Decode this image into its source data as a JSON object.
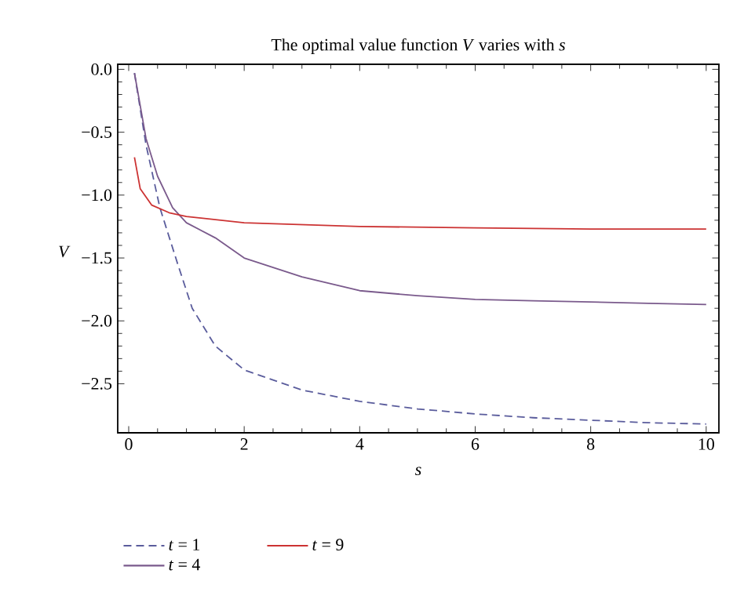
{
  "chart_data": {
    "type": "line",
    "title": "The optimal value function *V* varies with *s*",
    "xlabel": "*s*",
    "ylabel": "*V*",
    "xlim": [
      -0.19,
      10.22
    ],
    "ylim": [
      -2.89,
      0.04
    ],
    "xticks": [
      0,
      2,
      4,
      6,
      8,
      10
    ],
    "yticks": [
      {
        "value": 0,
        "label": "0.0"
      },
      {
        "value": -0.5,
        "label": "−0.5"
      },
      {
        "value": -1,
        "label": "−1.0"
      },
      {
        "value": -1.5,
        "label": "−1.5"
      },
      {
        "value": -2,
        "label": "−2.0"
      },
      {
        "value": -2.5,
        "label": "−2.5"
      }
    ],
    "grid": false,
    "legend": "bottom",
    "marker": "none",
    "series": [
      {
        "name": "*t* = 1",
        "color": "#5a5c9c",
        "line_style": "dashed",
        "x": [
          0.1,
          0.3,
          0.54,
          0.85,
          1.1,
          1.5,
          2,
          3,
          4,
          5,
          6,
          7,
          8,
          9,
          10
        ],
        "values": [
          -0.03,
          -0.6,
          -1.1,
          -1.55,
          -1.9,
          -2.2,
          -2.39,
          -2.55,
          -2.64,
          -2.7,
          -2.74,
          -2.77,
          -2.79,
          -2.81,
          -2.82
        ]
      },
      {
        "name": "*t* = 4",
        "color": "#7a5a8c",
        "line_style": "solid",
        "x": [
          0.1,
          0.3,
          0.5,
          0.76,
          1,
          1.5,
          2,
          3,
          4,
          5,
          6,
          7,
          8,
          9,
          10
        ],
        "values": [
          -0.03,
          -0.55,
          -0.85,
          -1.1,
          -1.22,
          -1.34,
          -1.5,
          -1.65,
          -1.76,
          -1.8,
          -1.83,
          -1.84,
          -1.85,
          -1.86,
          -1.87
        ]
      },
      {
        "name": "*t* = 9",
        "color": "#cc3333",
        "line_style": "solid",
        "x": [
          0.1,
          0.2,
          0.4,
          0.7,
          1,
          2,
          4,
          6,
          8,
          10
        ],
        "values": [
          -0.7,
          -0.95,
          -1.08,
          -1.14,
          -1.17,
          -1.22,
          -1.25,
          -1.26,
          -1.27,
          -1.27
        ]
      }
    ]
  }
}
